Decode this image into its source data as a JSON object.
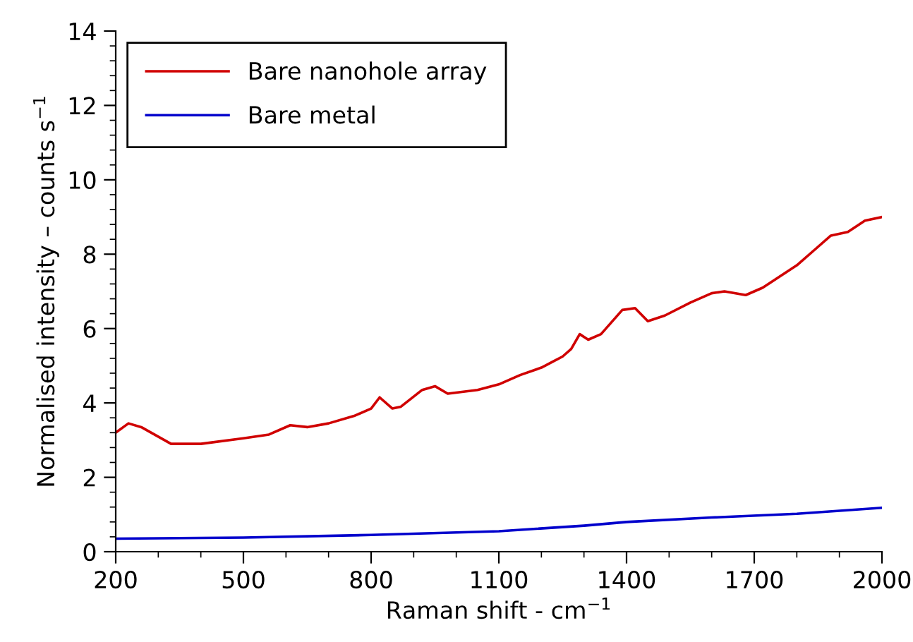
{
  "chart_data": {
    "type": "line",
    "xlabel": "Raman shift - cm$^{−1}$",
    "ylabel": "Normalised intensity – counts s$^{−1}$",
    "xlim": [
      200,
      2000
    ],
    "xticks": [
      200,
      500,
      800,
      1100,
      1400,
      1700,
      2000
    ],
    "ylim": [
      0,
      14
    ],
    "yticks": [
      0,
      2,
      4,
      6,
      8,
      10,
      12,
      14
    ],
    "grid": false,
    "legend": "top left",
    "marker": "none",
    "line_style": "solid",
    "series": [
      {
        "name": "Bare nanohole array",
        "color": "#d00000",
        "x": [
          200,
          230,
          260,
          330,
          400,
          500,
          560,
          610,
          650,
          700,
          760,
          800,
          820,
          850,
          870,
          920,
          950,
          980,
          1050,
          1100,
          1150,
          1200,
          1250,
          1270,
          1290,
          1310,
          1340,
          1390,
          1420,
          1450,
          1490,
          1550,
          1600,
          1630,
          1680,
          1720,
          1800,
          1850,
          1880,
          1920,
          1960,
          2000
        ],
        "values": [
          3.2,
          3.45,
          3.35,
          2.9,
          2.9,
          3.05,
          3.15,
          3.4,
          3.35,
          3.45,
          3.65,
          3.85,
          4.15,
          3.85,
          3.9,
          4.35,
          4.45,
          4.25,
          4.35,
          4.5,
          4.75,
          4.95,
          5.25,
          5.45,
          5.85,
          5.7,
          5.85,
          6.5,
          6.55,
          6.2,
          6.35,
          6.7,
          6.95,
          7.0,
          6.9,
          7.1,
          7.7,
          8.2,
          8.5,
          8.6,
          8.9,
          9.0
        ]
      },
      {
        "name": "Bare metal",
        "color": "#0000cc",
        "x": [
          200,
          500,
          800,
          1100,
          1300,
          1400,
          1600,
          1800,
          2000
        ],
        "values": [
          0.35,
          0.38,
          0.45,
          0.55,
          0.7,
          0.8,
          0.92,
          1.02,
          1.18
        ]
      }
    ]
  }
}
